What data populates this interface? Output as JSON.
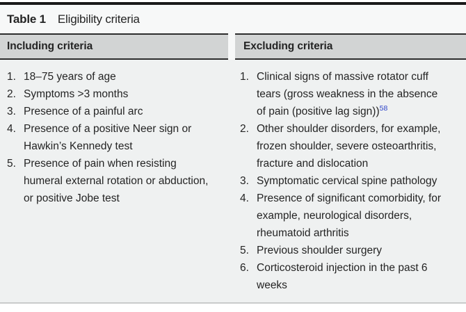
{
  "table": {
    "label": "Table 1",
    "caption": "Eligibility criteria",
    "columns": [
      {
        "header": "Including criteria",
        "items": [
          {
            "num": "1.",
            "text": "18–75 years of age"
          },
          {
            "num": "2.",
            "text": "Symptoms >3 months"
          },
          {
            "num": "3.",
            "text": "Presence of a painful arc"
          },
          {
            "num": "4.",
            "text": "Presence of a positive Neer sign or Hawkin’s Kennedy test"
          },
          {
            "num": "5.",
            "text": "Presence of pain when resisting humeral external rotation or abduction, or positive Jobe test"
          }
        ]
      },
      {
        "header": "Excluding criteria",
        "items": [
          {
            "num": "1.",
            "text": "Clinical signs of massive rotator cuff tears (gross weakness in the absence of pain (positive lag sign))",
            "ref": "58"
          },
          {
            "num": "2.",
            "text": "Other shoulder disorders, for example, frozen shoulder, severe osteoarthritis, fracture and dislocation"
          },
          {
            "num": "3.",
            "text": "Symptomatic cervical spine pathology"
          },
          {
            "num": "4.",
            "text": "Presence of significant comorbidity, for example, neurological disorders, rheumatoid arthritis"
          },
          {
            "num": "5.",
            "text": "Previous shoulder surgery"
          },
          {
            "num": "6.",
            "text": "Corticosteroid injection in the past 6 weeks"
          }
        ]
      }
    ]
  },
  "colors": {
    "header_bg": "#d2d4d4",
    "body_bg": "#eff1f1",
    "top_rule": "#1a1a1a",
    "bottom_rule": "#c9cbcb",
    "reference_blue": "#2b41c8",
    "text": "#242424"
  }
}
